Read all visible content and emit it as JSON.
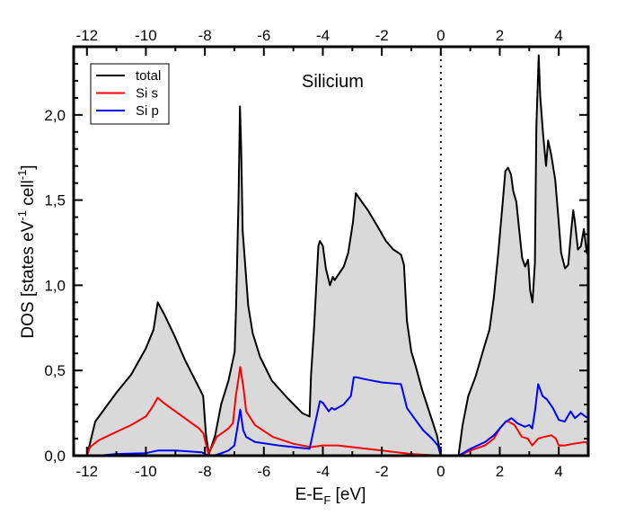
{
  "chart_data": {
    "type": "line",
    "title": "",
    "annotation": "Silicium",
    "xlabel_parts": [
      "E-E",
      "F",
      " [eV]"
    ],
    "ylabel_parts": [
      "DOS [states eV",
      "-1",
      " cell",
      "-1",
      "]"
    ],
    "xlim": [
      -12.45,
      5.0
    ],
    "ylim": [
      0,
      2.4
    ],
    "x_major_ticks": [
      -12,
      -10,
      -8,
      -6,
      -4,
      -2,
      0,
      2,
      4
    ],
    "x_tick_labels": [
      "-12",
      "-10",
      "-8",
      "-6",
      "-4",
      "-2",
      "0",
      "2",
      "4"
    ],
    "y_major_ticks": [
      0,
      0.5,
      1.0,
      1.5,
      2.0
    ],
    "y_tick_labels": [
      "0,0",
      "0,5",
      "1,0",
      "1,5",
      "2,0"
    ],
    "x_minor_step": 1,
    "y_minor_step": 0.1,
    "fermi_level_line": 0,
    "grid": false,
    "legend_position": "top-left",
    "fill_color": "#d9d9d9",
    "series": [
      {
        "name": "total",
        "color": "#000000",
        "filled": true,
        "segments": [
          [
            [
              -12.0,
              0
            ],
            [
              -11.9,
              0.07
            ],
            [
              -11.72,
              0.2
            ],
            [
              -11.0,
              0.37
            ],
            [
              -10.5,
              0.475
            ],
            [
              -10.0,
              0.63
            ],
            [
              -9.74,
              0.74
            ],
            [
              -9.6,
              0.9
            ],
            [
              -9.38,
              0.83
            ],
            [
              -9.02,
              0.7
            ],
            [
              -8.67,
              0.56
            ],
            [
              -8.26,
              0.42
            ],
            [
              -8.06,
              0.35
            ],
            [
              -7.96,
              0.12
            ],
            [
              -7.86,
              0.01
            ],
            [
              -7.65,
              0.12
            ],
            [
              -7.45,
              0.3
            ],
            [
              -7.2,
              0.44
            ],
            [
              -6.99,
              0.61
            ],
            [
              -6.94,
              0.88
            ],
            [
              -6.86,
              1.51
            ],
            [
              -6.81,
              2.05
            ],
            [
              -6.77,
              1.81
            ],
            [
              -6.72,
              1.32
            ],
            [
              -6.53,
              0.88
            ],
            [
              -6.38,
              0.72
            ],
            [
              -6.13,
              0.58
            ],
            [
              -5.73,
              0.44
            ],
            [
              -5.21,
              0.34
            ],
            [
              -4.7,
              0.25
            ],
            [
              -4.45,
              0.23
            ],
            [
              -4.4,
              0.47
            ],
            [
              -4.3,
              0.74
            ],
            [
              -4.15,
              1.23
            ],
            [
              -4.1,
              1.26
            ],
            [
              -4.0,
              1.23
            ],
            [
              -3.9,
              1.1
            ],
            [
              -3.76,
              1.0
            ],
            [
              -3.66,
              1.05
            ],
            [
              -3.6,
              1.03
            ],
            [
              -3.29,
              1.11
            ],
            [
              -3.14,
              1.19
            ],
            [
              -2.98,
              1.37
            ],
            [
              -2.88,
              1.54
            ],
            [
              -2.68,
              1.49
            ],
            [
              -2.47,
              1.44
            ],
            [
              -2.16,
              1.35
            ],
            [
              -1.86,
              1.26
            ],
            [
              -1.61,
              1.21
            ],
            [
              -1.35,
              1.18
            ],
            [
              -1.25,
              1.12
            ],
            [
              -1.15,
              0.79
            ],
            [
              -1.0,
              0.61
            ],
            [
              -0.86,
              0.53
            ],
            [
              -0.64,
              0.39
            ],
            [
              -0.34,
              0.23
            ],
            [
              -0.13,
              0.12
            ],
            [
              0.0,
              0
            ]
          ],
          [
            [
              0.6,
              0
            ],
            [
              0.74,
              0.18
            ],
            [
              0.93,
              0.35
            ],
            [
              1.19,
              0.47
            ],
            [
              1.44,
              0.62
            ],
            [
              1.65,
              0.74
            ],
            [
              1.8,
              0.93
            ],
            [
              1.95,
              1.19
            ],
            [
              2.1,
              1.49
            ],
            [
              2.19,
              1.67
            ],
            [
              2.28,
              1.69
            ],
            [
              2.38,
              1.65
            ],
            [
              2.46,
              1.55
            ],
            [
              2.56,
              1.49
            ],
            [
              2.66,
              1.32
            ],
            [
              2.76,
              1.16
            ],
            [
              2.86,
              1.11
            ],
            [
              2.96,
              1.15
            ],
            [
              3.03,
              0.97
            ],
            [
              3.11,
              0.9
            ],
            [
              3.19,
              1.13
            ],
            [
              3.24,
              1.93
            ],
            [
              3.32,
              2.35
            ],
            [
              3.37,
              2.11
            ],
            [
              3.47,
              1.88
            ],
            [
              3.57,
              1.7
            ],
            [
              3.64,
              1.85
            ],
            [
              3.74,
              1.77
            ],
            [
              3.88,
              1.62
            ],
            [
              3.98,
              1.41
            ],
            [
              4.08,
              1.19
            ],
            [
              4.21,
              1.1
            ],
            [
              4.32,
              1.12
            ],
            [
              4.42,
              1.32
            ],
            [
              4.49,
              1.44
            ],
            [
              4.55,
              1.37
            ],
            [
              4.65,
              1.21
            ],
            [
              4.75,
              1.23
            ],
            [
              4.85,
              1.33
            ],
            [
              4.95,
              1.19
            ],
            [
              5.0,
              1.18
            ]
          ]
        ]
      },
      {
        "name": "Si s",
        "color": "#ff0000",
        "filled": false,
        "segments": [
          [
            [
              -12.0,
              0
            ],
            [
              -11.9,
              0.05
            ],
            [
              -11.6,
              0.09
            ],
            [
              -11.0,
              0.14
            ],
            [
              -10.5,
              0.18
            ],
            [
              -10.0,
              0.23
            ],
            [
              -9.8,
              0.28
            ],
            [
              -9.6,
              0.34
            ],
            [
              -9.4,
              0.31
            ],
            [
              -9.0,
              0.26
            ],
            [
              -8.6,
              0.21
            ],
            [
              -8.2,
              0.16
            ],
            [
              -8.05,
              0.13
            ],
            [
              -7.88,
              0.01
            ],
            [
              -7.6,
              0.11
            ],
            [
              -7.2,
              0.16
            ],
            [
              -7.05,
              0.19
            ],
            [
              -6.95,
              0.35
            ],
            [
              -6.8,
              0.52
            ],
            [
              -6.7,
              0.41
            ],
            [
              -6.6,
              0.26
            ],
            [
              -6.3,
              0.18
            ],
            [
              -5.7,
              0.11
            ],
            [
              -5.0,
              0.07
            ],
            [
              -4.4,
              0.05
            ],
            [
              -4.0,
              0.06
            ],
            [
              -3.5,
              0.06
            ],
            [
              -2.0,
              0.03
            ],
            [
              -1.0,
              0.01
            ],
            [
              0.0,
              0
            ]
          ],
          [
            [
              0.6,
              0
            ],
            [
              1.0,
              0.03
            ],
            [
              1.5,
              0.06
            ],
            [
              1.8,
              0.1
            ],
            [
              2.0,
              0.16
            ],
            [
              2.2,
              0.2
            ],
            [
              2.3,
              0.2
            ],
            [
              2.5,
              0.18
            ],
            [
              2.75,
              0.11
            ],
            [
              2.95,
              0.1
            ],
            [
              3.1,
              0.06
            ],
            [
              3.3,
              0.1
            ],
            [
              3.5,
              0.11
            ],
            [
              3.75,
              0.12
            ],
            [
              3.9,
              0.1
            ],
            [
              4.0,
              0.06
            ],
            [
              4.2,
              0.06
            ],
            [
              4.5,
              0.07
            ],
            [
              4.9,
              0.08
            ],
            [
              5.0,
              0.07
            ]
          ]
        ]
      },
      {
        "name": "Si p",
        "color": "#0000ff",
        "filled": false,
        "segments": [
          [
            [
              -12.0,
              0
            ],
            [
              -11.6,
              0
            ],
            [
              -11.0,
              0.01
            ],
            [
              -10.0,
              0.015
            ],
            [
              -9.6,
              0.03
            ],
            [
              -9.0,
              0.03
            ],
            [
              -8.1,
              0.02
            ],
            [
              -7.88,
              0
            ],
            [
              -7.6,
              0.005
            ],
            [
              -7.2,
              0.03
            ],
            [
              -7.0,
              0.06
            ],
            [
              -6.9,
              0.16
            ],
            [
              -6.8,
              0.27
            ],
            [
              -6.7,
              0.15
            ],
            [
              -6.6,
              0.11
            ],
            [
              -6.3,
              0.08
            ],
            [
              -5.5,
              0.06
            ],
            [
              -4.45,
              0.04
            ],
            [
              -4.3,
              0.16
            ],
            [
              -4.1,
              0.32
            ],
            [
              -4.0,
              0.31
            ],
            [
              -3.8,
              0.26
            ],
            [
              -3.7,
              0.28
            ],
            [
              -3.6,
              0.27
            ],
            [
              -3.3,
              0.3
            ],
            [
              -3.05,
              0.35
            ],
            [
              -2.95,
              0.46
            ],
            [
              -2.85,
              0.46
            ],
            [
              -2.6,
              0.45
            ],
            [
              -2.0,
              0.43
            ],
            [
              -1.35,
              0.42
            ],
            [
              -1.25,
              0.35
            ],
            [
              -1.15,
              0.28
            ],
            [
              -0.9,
              0.22
            ],
            [
              -0.6,
              0.15
            ],
            [
              -0.3,
              0.1
            ],
            [
              -0.1,
              0.06
            ],
            [
              0.0,
              0
            ]
          ],
          [
            [
              0.6,
              0
            ],
            [
              1.0,
              0.04
            ],
            [
              1.5,
              0.08
            ],
            [
              1.8,
              0.12
            ],
            [
              2.0,
              0.16
            ],
            [
              2.2,
              0.2
            ],
            [
              2.4,
              0.22
            ],
            [
              2.6,
              0.19
            ],
            [
              2.85,
              0.17
            ],
            [
              3.0,
              0.18
            ],
            [
              3.1,
              0.16
            ],
            [
              3.2,
              0.27
            ],
            [
              3.3,
              0.42
            ],
            [
              3.45,
              0.35
            ],
            [
              3.6,
              0.33
            ],
            [
              3.8,
              0.28
            ],
            [
              4.0,
              0.21
            ],
            [
              4.2,
              0.2
            ],
            [
              4.4,
              0.26
            ],
            [
              4.55,
              0.22
            ],
            [
              4.75,
              0.25
            ],
            [
              4.9,
              0.23
            ],
            [
              5.0,
              0.22
            ]
          ]
        ]
      }
    ]
  }
}
